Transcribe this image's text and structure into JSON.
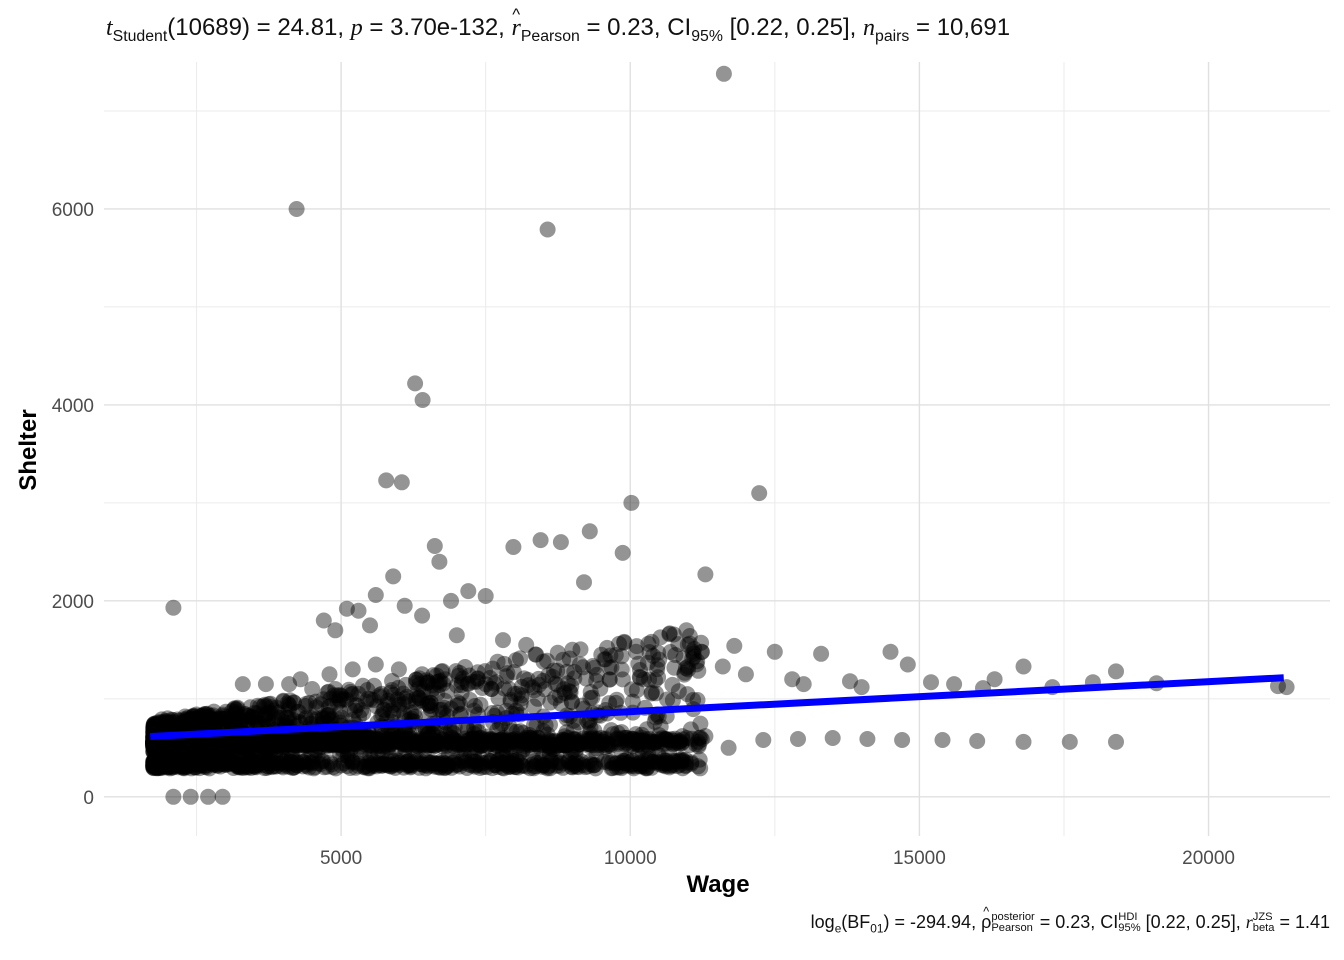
{
  "title": {
    "stat_symbol": "t",
    "stat_subscript": "Student",
    "df": "(10689)",
    "eq1": " = 24.81, ",
    "p_symbol": "p",
    "p_value": " = 3.70e-132, ",
    "r_symbol": "r",
    "hat": "^",
    "r_subscript": "Pearson",
    "r_value": " = 0.23, CI",
    "ci_subscript": "95%",
    "ci_value": " [0.22, 0.25], ",
    "n_symbol": "n",
    "n_subscript": "pairs",
    "n_value": " = 10,691"
  },
  "caption": {
    "log_text": "log",
    "log_sub": "e",
    "bf_open": "(BF",
    "bf_sub": "01",
    "bf_value": ") = -294.94, ",
    "rho_symbol": "ρ",
    "hat": "^",
    "rho_sup": "posterior",
    "rho_sub": "Pearson",
    "rho_value": " = 0.23, CI",
    "ci_sup": "HDI",
    "ci_sub": "95%",
    "ci_value": " [0.22, 0.25], ",
    "r_symbol": "r",
    "r_sup": "JZS",
    "r_sub": "beta",
    "r_value": " = 1.41"
  },
  "chart_data": {
    "type": "scatter",
    "xlabel": "Wage",
    "ylabel": "Shelter",
    "xlim": [
      900,
      22100
    ],
    "ylim": [
      -400,
      7500
    ],
    "x_ticks": [
      5000,
      10000,
      15000,
      20000
    ],
    "x_tick_labels": [
      "5000",
      "10000",
      "15000",
      "20000"
    ],
    "x_minor_gridlines": [
      2500,
      7500,
      12500,
      17500
    ],
    "y_ticks": [
      0,
      2000,
      4000,
      6000
    ],
    "y_tick_labels": [
      "0",
      "2000",
      "4000",
      "6000"
    ],
    "y_minor_gridlines": [
      1000,
      3000,
      5000,
      7000
    ],
    "grid": true,
    "point_color": "#000000",
    "point_alpha": 0.42,
    "fit_line": {
      "color": "#0000ff",
      "x": [
        1700,
        21300
      ],
      "y": [
        615,
        1215
      ]
    },
    "series": [
      {
        "name": "observations",
        "x": [
          2100,
          4230,
          8570,
          11620,
          6280,
          6410,
          5780,
          6050,
          12230,
          11300,
          10020,
          9300,
          8800,
          9870,
          7980,
          6620,
          8450,
          9200,
          5900,
          6700,
          7200,
          5100,
          6900,
          7500,
          5600,
          4700,
          5300,
          6100,
          4900,
          6400,
          5500,
          7000,
          7800,
          8200,
          9000,
          9600,
          10100,
          11100,
          11800,
          12500,
          13300,
          14500,
          14800,
          11600,
          12800,
          13800,
          15600,
          16100,
          16800,
          17300,
          18000,
          18400,
          19100,
          21200,
          21350,
          16300,
          15200,
          14000,
          13000,
          12000,
          11000,
          10500,
          9500,
          8500,
          8700,
          7600,
          6300,
          5200,
          4400,
          4000,
          3600,
          3200,
          2800,
          2500,
          2300,
          2000,
          1900,
          1800,
          1750,
          1850,
          1950,
          2200,
          2600,
          3000,
          3400,
          3800,
          4200,
          4600,
          5000,
          5400,
          5800,
          6200,
          6600,
          7000,
          7400,
          7800,
          8200,
          8600,
          9000,
          9400,
          9800,
          10200,
          10600,
          11200,
          11700,
          12300,
          12900,
          13500,
          14100,
          14700,
          15400,
          16000,
          16800,
          17600,
          18400,
          2100,
          2400,
          2700,
          2950,
          2200,
          2500,
          2800,
          3100,
          3500,
          4100,
          4500,
          4900,
          5300,
          5700,
          6100,
          6500,
          6900,
          7300,
          7700,
          8100,
          8500,
          8900,
          9300,
          9700,
          10100,
          10500,
          10900,
          11300,
          4300,
          4800,
          5200,
          5600,
          6000,
          6400,
          6800,
          7200,
          7600,
          8000,
          8400,
          8800,
          9200,
          9600,
          3300,
          3700,
          4100,
          4500,
          4900,
          5300,
          5700,
          6100,
          6500,
          6900,
          7300,
          7700,
          8100,
          8500,
          8900,
          9300
        ],
        "y": [
          1930,
          6000,
          5790,
          7380,
          4220,
          4050,
          3230,
          3210,
          3100,
          2270,
          3000,
          2710,
          2600,
          2490,
          2550,
          2560,
          2620,
          2190,
          2250,
          2400,
          2100,
          1920,
          2000,
          2050,
          2060,
          1800,
          1900,
          1950,
          1700,
          1850,
          1750,
          1650,
          1600,
          1550,
          1500,
          1520,
          1480,
          1430,
          1540,
          1480,
          1460,
          1480,
          1350,
          1330,
          1200,
          1180,
          1150,
          1110,
          1330,
          1120,
          1170,
          1280,
          1160,
          1130,
          1120,
          1200,
          1170,
          1120,
          1150,
          1250,
          1300,
          1400,
          1450,
          1380,
          1010,
          1100,
          1000,
          1050,
          950,
          980,
          920,
          900,
          870,
          840,
          820,
          800,
          790,
          700,
          620,
          560,
          520,
          450,
          420,
          410,
          390,
          380,
          360,
          340,
          320,
          300,
          320,
          300,
          340,
          330,
          320,
          340,
          310,
          320,
          300,
          290,
          300,
          330,
          370,
          380,
          500,
          580,
          590,
          600,
          590,
          580,
          580,
          570,
          560,
          560,
          560,
          0,
          0,
          0,
          0,
          600,
          620,
          650,
          680,
          700,
          700,
          700,
          690,
          690,
          700,
          690,
          680,
          680,
          700,
          680,
          670,
          670,
          660,
          650,
          640,
          640,
          630,
          620,
          620,
          1200,
          1250,
          1300,
          1350,
          1300,
          1250,
          1200,
          1150,
          1100,
          1050,
          1000,
          950,
          900,
          850,
          1150,
          1150,
          1150,
          1100,
          1100,
          1050,
          1050,
          1000,
          950,
          900,
          880,
          860,
          840,
          820,
          800,
          780
        ]
      }
    ]
  }
}
